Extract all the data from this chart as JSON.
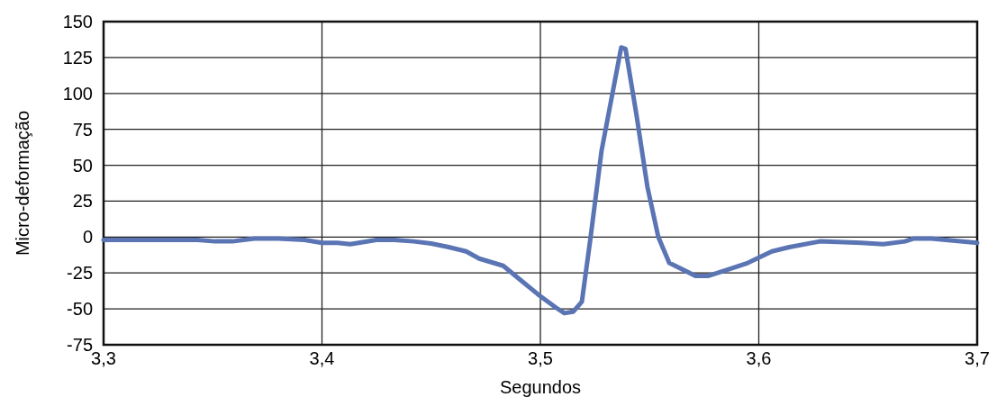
{
  "chart_data": {
    "type": "line",
    "xlabel": "Segundos",
    "ylabel": "Micro-deformação",
    "x": [
      3.3,
      3.331,
      3.343,
      3.351,
      3.359,
      3.369,
      3.38,
      3.392,
      3.4,
      3.407,
      3.413,
      3.425,
      3.433,
      3.442,
      3.45,
      3.458,
      3.466,
      3.472,
      3.483,
      3.491,
      3.499,
      3.507,
      3.511,
      3.515,
      3.519,
      3.523,
      3.528,
      3.537,
      3.539,
      3.544,
      3.549,
      3.554,
      3.559,
      3.571,
      3.577,
      3.585,
      3.595,
      3.606,
      3.614,
      3.628,
      3.647,
      3.657,
      3.667,
      3.671,
      3.679,
      3.7
    ],
    "series": [
      {
        "color": "#5a74b4",
        "values": [
          -2,
          -2,
          -2,
          -3,
          -3,
          -1,
          -1,
          -2,
          -4,
          -4,
          -5,
          -2,
          -2,
          -3,
          -4.5,
          -7,
          -10,
          -15,
          -20,
          -30,
          -40,
          -49,
          -53,
          -52,
          -45,
          0,
          60,
          132,
          131,
          85,
          35,
          0,
          -18,
          -27,
          -27,
          -23,
          -18,
          -10,
          -7,
          -3,
          -4,
          -5,
          -3,
          -1,
          -1,
          -4
        ]
      }
    ],
    "xlim": [
      3.3,
      3.7
    ],
    "xticks": [
      {
        "value": 3.3,
        "label": "3,3"
      },
      {
        "value": 3.4,
        "label": "3,4"
      },
      {
        "value": 3.5,
        "label": "3,5"
      },
      {
        "value": 3.6,
        "label": "3,6"
      },
      {
        "value": 3.7,
        "label": "3,7"
      }
    ],
    "ylim": [
      -75,
      150
    ],
    "yticks": [
      -75,
      -50,
      -25,
      0,
      25,
      50,
      75,
      100,
      125,
      150
    ],
    "grid": true,
    "marker": "none",
    "line_style": "solid"
  }
}
